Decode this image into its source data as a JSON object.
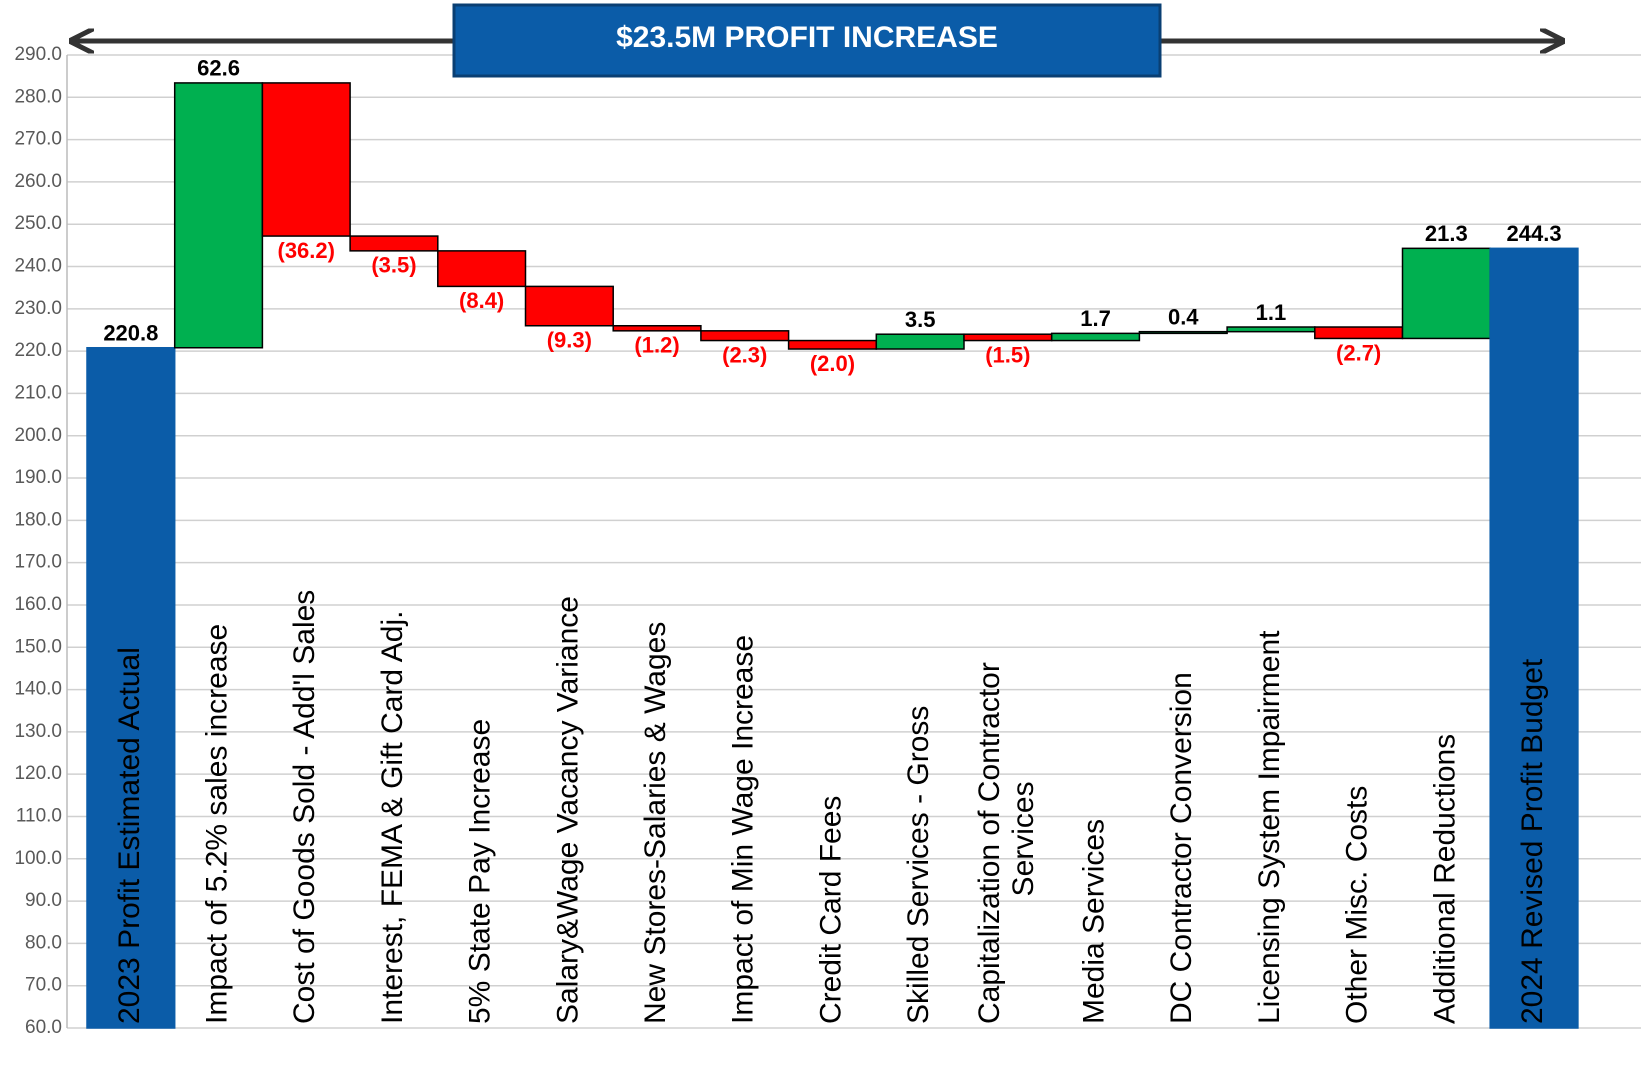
{
  "chart_data": {
    "type": "waterfall",
    "annotation": "$23.5M PROFIT INCREASE",
    "categories": [
      "2023 Profit Estimated Actual",
      "Impact of 5.2% sales increase",
      "Cost of Goods Sold - Add'l Sales",
      "Interest, FEMA & Gift Card Adj.",
      "5% State Pay Increase",
      "Salary&Wage Vacancy Variance",
      "New Stores-Salaries & Wages",
      "Impact of Min Wage Increase",
      "Credit Card Fees",
      "Skilled Services - Gross",
      "Capitalization of Contractor Services",
      "Media Services",
      "DC Contractor Conversion",
      "Licensing System Impairment",
      "Other Misc. Costs",
      "Additional Reductions",
      "2024 Revised Profit Budget"
    ],
    "values": [
      220.8,
      62.6,
      -36.2,
      -3.5,
      -8.4,
      -9.3,
      -1.2,
      -2.3,
      -2.0,
      3.5,
      -1.5,
      1.7,
      0.4,
      1.1,
      -2.7,
      21.3,
      244.3
    ],
    "value_labels": [
      "220.8",
      "62.6",
      "(36.2)",
      "(3.5)",
      "(8.4)",
      "(9.3)",
      "(1.2)",
      "(2.3)",
      "(2.0)",
      "3.5",
      "(1.5)",
      "1.7",
      "0.4",
      "1.1",
      "(2.7)",
      "21.3",
      "244.3"
    ],
    "measure": [
      "absolute",
      "relative",
      "relative",
      "relative",
      "relative",
      "relative",
      "relative",
      "relative",
      "relative",
      "relative",
      "relative",
      "relative",
      "relative",
      "relative",
      "relative",
      "relative",
      "absolute"
    ],
    "colors": {
      "total": "#0B5CA8",
      "increase": "#00B050",
      "decrease": "#FF0000"
    },
    "ylim": [
      60,
      290
    ],
    "yticks": [
      {
        "value": 60,
        "label": "60.0"
      },
      {
        "value": 70,
        "label": "70.0"
      },
      {
        "value": 80,
        "label": "80.0"
      },
      {
        "value": 90,
        "label": "90.0"
      },
      {
        "value": 100,
        "label": "100.0"
      },
      {
        "value": 110,
        "label": "110.0"
      },
      {
        "value": 120,
        "label": "120.0"
      },
      {
        "value": 130,
        "label": "130.0"
      },
      {
        "value": 140,
        "label": "140.0"
      },
      {
        "value": 150,
        "label": "150.0"
      },
      {
        "value": 160,
        "label": "160.0"
      },
      {
        "value": 170,
        "label": "170.0"
      },
      {
        "value": 180,
        "label": "180.0"
      },
      {
        "value": 190,
        "label": "190.0"
      },
      {
        "value": 200,
        "label": "200.0"
      },
      {
        "value": 210,
        "label": "210.0"
      },
      {
        "value": 220,
        "label": "220.0"
      },
      {
        "value": 230,
        "label": "230.0"
      },
      {
        "value": 240,
        "label": "240.0"
      },
      {
        "value": 250,
        "label": "250.0"
      },
      {
        "value": 260,
        "label": "260.0"
      },
      {
        "value": 270,
        "label": "270.0"
      },
      {
        "value": 280,
        "label": "280.0"
      },
      {
        "value": 290,
        "label": "290.0"
      }
    ],
    "grid": true
  }
}
